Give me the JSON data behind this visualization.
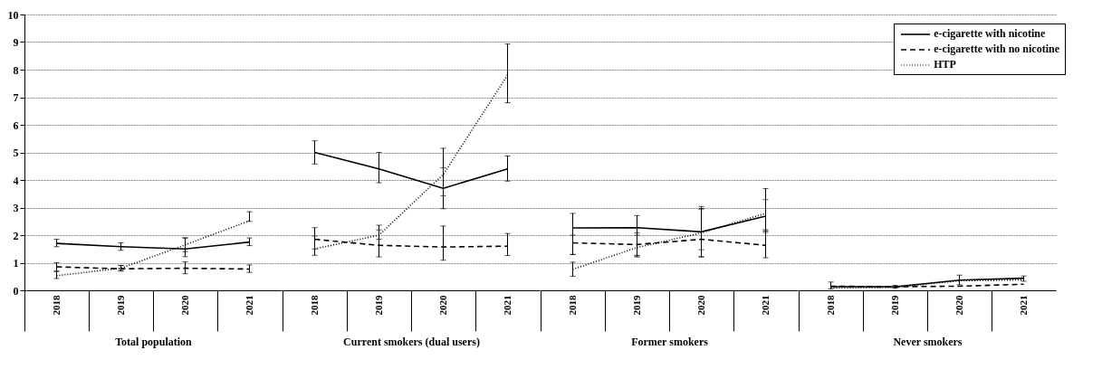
{
  "chart_data": [
    {
      "type": "line",
      "xlabel": "Total population",
      "categories": [
        "2018",
        "2019",
        "2020",
        "2021"
      ],
      "ylim": [
        0,
        10
      ],
      "yticks": [
        0,
        1,
        2,
        3,
        4,
        5,
        6,
        7,
        8,
        9,
        10
      ],
      "grid": "y",
      "marker": "none",
      "legend": "top right",
      "series": [
        {
          "name": "e-cigarette with nicotine",
          "color": "#000000",
          "line_style": "solid",
          "values": [
            1.7,
            1.58,
            1.5,
            1.75
          ],
          "errors": [
            [
              1.58,
              1.85
            ],
            [
              1.45,
              1.72
            ],
            [
              1.22,
              1.9
            ],
            [
              1.62,
              1.9
            ]
          ]
        },
        {
          "name": "e-cigarette with no nicotine",
          "color": "#000000",
          "line_style": "dashed",
          "values": [
            0.85,
            0.78,
            0.8,
            0.77
          ],
          "errors": [
            [
              0.7,
              1.0
            ],
            [
              0.7,
              0.9
            ],
            [
              0.6,
              1.03
            ],
            [
              0.65,
              0.92
            ]
          ]
        },
        {
          "name": "HTP",
          "color": "#000000",
          "line_style": "dotted",
          "values": [
            0.53,
            0.8,
            1.65,
            2.52
          ],
          "errors": [
            [
              0.43,
              0.68
            ],
            [
              0.72,
              0.9
            ],
            [
              1.4,
              1.9
            ],
            [
              2.5,
              2.85
            ]
          ]
        }
      ]
    },
    {
      "type": "line",
      "xlabel": "Current smokers (dual users)",
      "categories": [
        "2018",
        "2019",
        "2020",
        "2021"
      ],
      "ylim": [
        0,
        10
      ],
      "yticks": [
        0,
        1,
        2,
        3,
        4,
        5,
        6,
        7,
        8,
        9,
        10
      ],
      "grid": "y",
      "marker": "none",
      "tick_labels": "x",
      "series": [
        {
          "color": "#000000",
          "line_style": "solid",
          "values": [
            5.0,
            4.4,
            3.7,
            4.4
          ],
          "errors": [
            [
              4.58,
              5.42
            ],
            [
              3.9,
              5.0
            ],
            [
              2.96,
              5.15
            ],
            [
              3.96,
              4.87
            ]
          ]
        },
        {
          "color": "#000000",
          "line_style": "dashed",
          "values": [
            1.85,
            1.63,
            1.57,
            1.6
          ],
          "errors": [
            [
              1.27,
              2.27
            ],
            [
              1.21,
              2.36
            ],
            [
              1.09,
              2.33
            ],
            [
              1.26,
              2.06
            ]
          ]
        },
        {
          "color": "#000000",
          "line_style": "dotted",
          "values": [
            1.5,
            2.0,
            4.2,
            7.8
          ],
          "errors": [
            [
              1.5,
              1.97
            ],
            [
              1.85,
              2.19
            ],
            [
              3.43,
              4.44
            ],
            [
              6.8,
              8.93
            ]
          ]
        }
      ]
    },
    {
      "type": "line",
      "xlabel": "Former smokers",
      "categories": [
        "2018",
        "2019",
        "2020",
        "2021"
      ],
      "ylim": [
        0,
        10
      ],
      "yticks": [
        0,
        1,
        2,
        3,
        4,
        5,
        6,
        7,
        8,
        9,
        10
      ],
      "grid": "y",
      "marker": "none",
      "tick_labels": "x",
      "series": [
        {
          "color": "#000000",
          "line_style": "solid",
          "values": [
            2.26,
            2.27,
            2.12,
            2.69
          ],
          "errors": [
            [
              1.3,
              2.79
            ],
            [
              1.27,
              2.71
            ],
            [
              1.21,
              3.04
            ],
            [
              2.2,
              3.69
            ]
          ]
        },
        {
          "color": "#000000",
          "line_style": "dashed",
          "values": [
            1.72,
            1.66,
            1.85,
            1.63
          ],
          "errors": [
            [
              1.3,
              2.0
            ],
            [
              1.25,
              2.0
            ],
            [
              1.22,
              2.95
            ],
            [
              1.18,
              2.15
            ]
          ]
        },
        {
          "color": "#000000",
          "line_style": "dotted",
          "values": [
            0.76,
            1.55,
            2.08,
            2.79
          ],
          "errors": [
            [
              0.51,
              1.02
            ],
            [
              1.21,
              2.08
            ],
            [
              1.47,
              2.96
            ],
            [
              2.1,
              3.29
            ]
          ]
        }
      ]
    },
    {
      "type": "line",
      "xlabel": "Never smokers",
      "categories": [
        "2018",
        "2019",
        "2020",
        "2021"
      ],
      "ylim": [
        0,
        10
      ],
      "yticks": [
        0,
        1,
        2,
        3,
        4,
        5,
        6,
        7,
        8,
        9,
        10
      ],
      "grid": "y",
      "marker": "none",
      "tick_labels": "x",
      "series": [
        {
          "color": "#000000",
          "line_style": "solid",
          "values": [
            0.13,
            0.13,
            0.37,
            0.44
          ],
          "errors": [
            [
              0.05,
              0.3
            ],
            [
              0.08,
              0.18
            ],
            [
              0.2,
              0.55
            ],
            [
              0.33,
              0.52
            ]
          ]
        },
        {
          "color": "#000000",
          "line_style": "dashed",
          "values": [
            0.15,
            0.13,
            0.15,
            0.22
          ]
        },
        {
          "color": "#000000",
          "line_style": "dotted",
          "values": [
            0.08,
            0.1,
            0.35,
            0.38
          ]
        }
      ]
    }
  ]
}
